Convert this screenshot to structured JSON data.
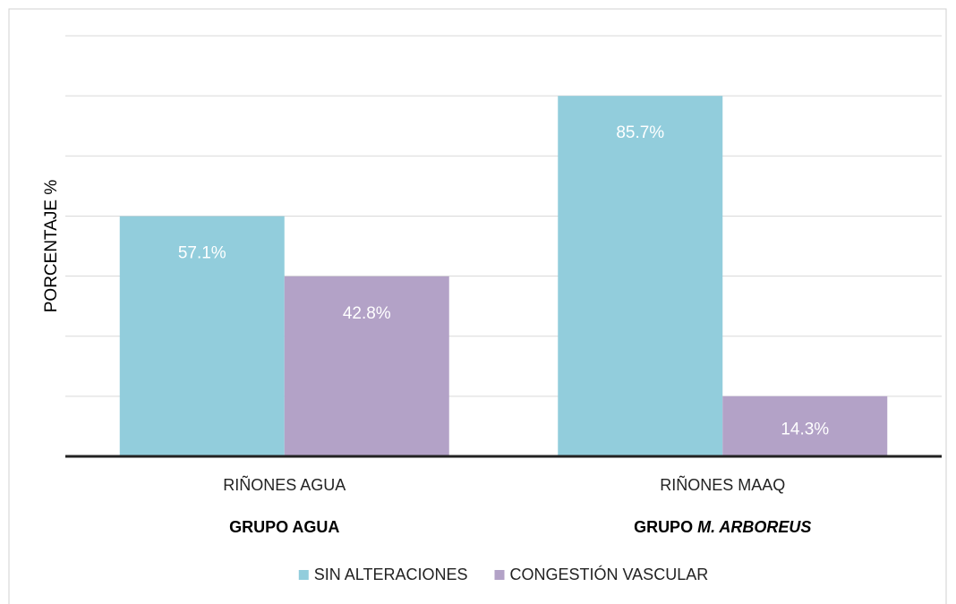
{
  "chart_data": {
    "type": "bar",
    "y_label": "PORCENTAJE %",
    "categories": [
      "RIÑONES AGUA",
      "RIÑONES MAAQ"
    ],
    "group_labels": [
      {
        "text": "GRUPO AGUA"
      },
      {
        "text": "GRUPO ",
        "italic_text": "M. ARBOREUS"
      }
    ],
    "series": [
      {
        "name": "SIN ALTERACIONES",
        "color": "#92cddc",
        "values": [
          57.1,
          85.7
        ],
        "value_labels": [
          "57.1%",
          "85.7%"
        ]
      },
      {
        "name": "CONGESTIÓN VASCULAR",
        "color": "#b3a2c7",
        "values": [
          42.8,
          14.3
        ],
        "value_labels": [
          "42.8%",
          "14.3%"
        ]
      }
    ],
    "ylim": [
      0,
      100
    ],
    "yticks": [
      0,
      14.29,
      28.57,
      42.86,
      57.14,
      71.43,
      85.71,
      100
    ],
    "grid": true,
    "legend": "bottom"
  }
}
